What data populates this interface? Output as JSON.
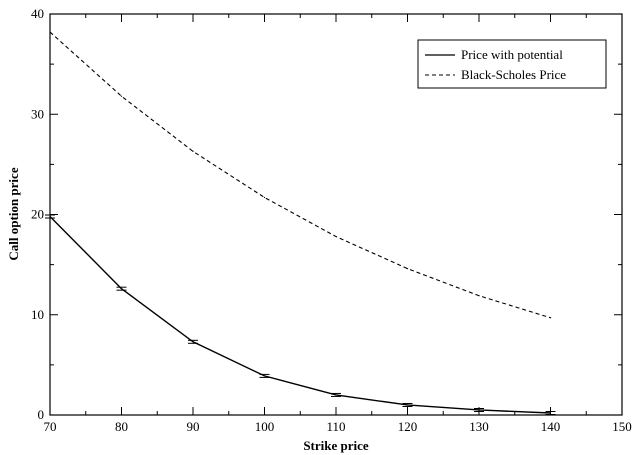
{
  "chart_data": {
    "type": "line",
    "title": "",
    "xlabel": "Strike price",
    "ylabel": "Call option price",
    "xlim": [
      70,
      150
    ],
    "ylim": [
      0,
      40
    ],
    "x_ticks": [
      70,
      80,
      90,
      100,
      110,
      120,
      130,
      140,
      150
    ],
    "y_ticks": [
      0,
      10,
      20,
      30,
      40
    ],
    "grid": false,
    "legend_position": "top-right",
    "series": [
      {
        "name": "Price with potential",
        "style": "solid",
        "color": "#000000",
        "error_bars": true,
        "x": [
          70,
          80,
          90,
          100,
          110,
          120,
          130,
          140
        ],
        "y": [
          19.8,
          12.6,
          7.3,
          3.9,
          2.0,
          1.0,
          0.5,
          0.2
        ]
      },
      {
        "name": "Black-Scholes Price",
        "style": "dashed",
        "color": "#000000",
        "error_bars": false,
        "x": [
          70,
          80,
          90,
          100,
          110,
          120,
          130,
          140
        ],
        "y": [
          38.2,
          31.8,
          26.3,
          21.7,
          17.8,
          14.6,
          11.9,
          9.7
        ]
      }
    ]
  }
}
